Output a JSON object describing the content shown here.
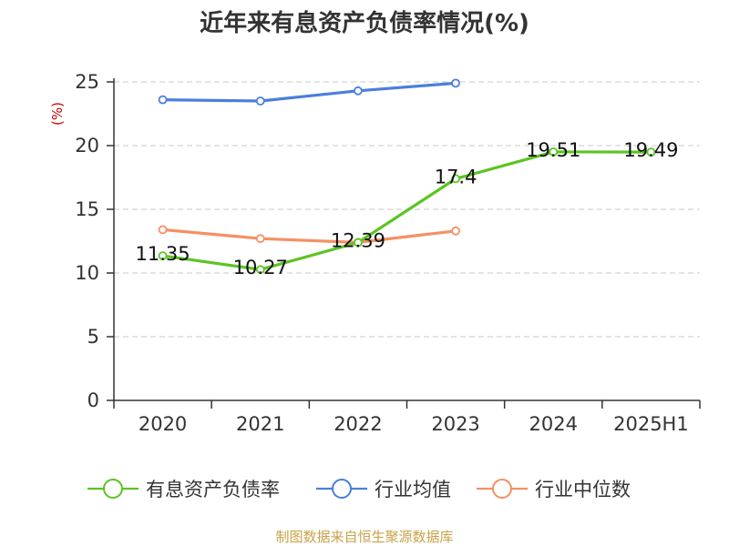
{
  "chart_data": {
    "type": "line",
    "title": "近年来有息资产负债率情况(%)",
    "ylabel": "(%)",
    "xlabel": "",
    "categories": [
      "2020",
      "2021",
      "2022",
      "2023",
      "2024",
      "2025H1"
    ],
    "ylim": [
      0,
      25
    ],
    "yticks": [
      0,
      5,
      10,
      15,
      20,
      25
    ],
    "grid": true,
    "legend_position": "bottom",
    "series": [
      {
        "name": "有息资产负债率",
        "color": "#5cc423",
        "values": [
          11.35,
          10.27,
          12.39,
          17.4,
          19.51,
          19.49
        ],
        "labels": [
          "11.35",
          "10.27",
          "12.39",
          "17.4",
          "19.51",
          "19.49"
        ]
      },
      {
        "name": "行业均值",
        "color": "#4a7fdc",
        "values": [
          23.6,
          23.5,
          24.3,
          24.9,
          null,
          null
        ],
        "labels": []
      },
      {
        "name": "行业中位数",
        "color": "#f59062",
        "values": [
          13.4,
          12.7,
          12.4,
          13.3,
          null,
          null
        ],
        "labels": []
      }
    ],
    "source": "制图数据来自恒生聚源数据库"
  }
}
